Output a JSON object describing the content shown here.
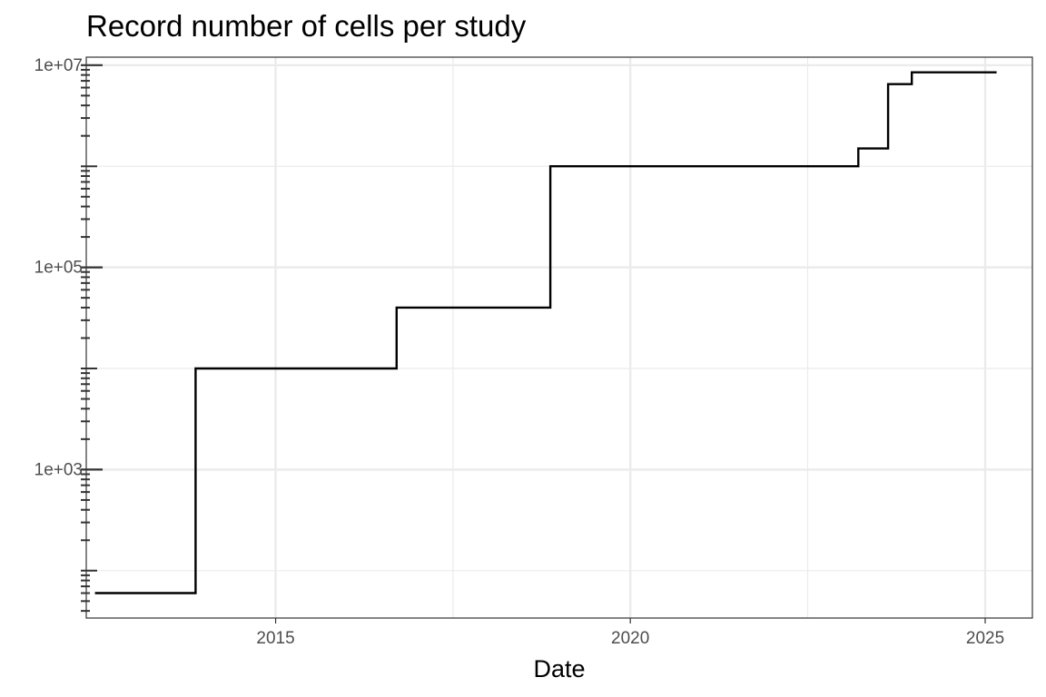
{
  "chart_data": {
    "type": "line",
    "subtype": "step",
    "title": "Record number of cells per study",
    "xlabel": "Date",
    "ylabel": "",
    "x_scale": "date",
    "y_scale": "log10",
    "xlim": [
      "2012-05-01",
      "2025-09-01"
    ],
    "ylim": [
      34,
      12000000
    ],
    "x_ticks": [
      "2015",
      "2020",
      "2025"
    ],
    "y_ticks": [
      "1e+03",
      "1e+05",
      "1e+07"
    ],
    "grid": true,
    "legend": "none",
    "line_color": "#000000",
    "series": [
      {
        "x": [
          "2012-06-15",
          "2013-11-15",
          "2016-09-15",
          "2018-11-15",
          "2023-03-20",
          "2023-08-20",
          "2023-12-20",
          "2025-03-01"
        ],
        "y": [
          60,
          10000,
          40000,
          1000000,
          1500000,
          6500000,
          8500000,
          8500000
        ]
      }
    ]
  }
}
